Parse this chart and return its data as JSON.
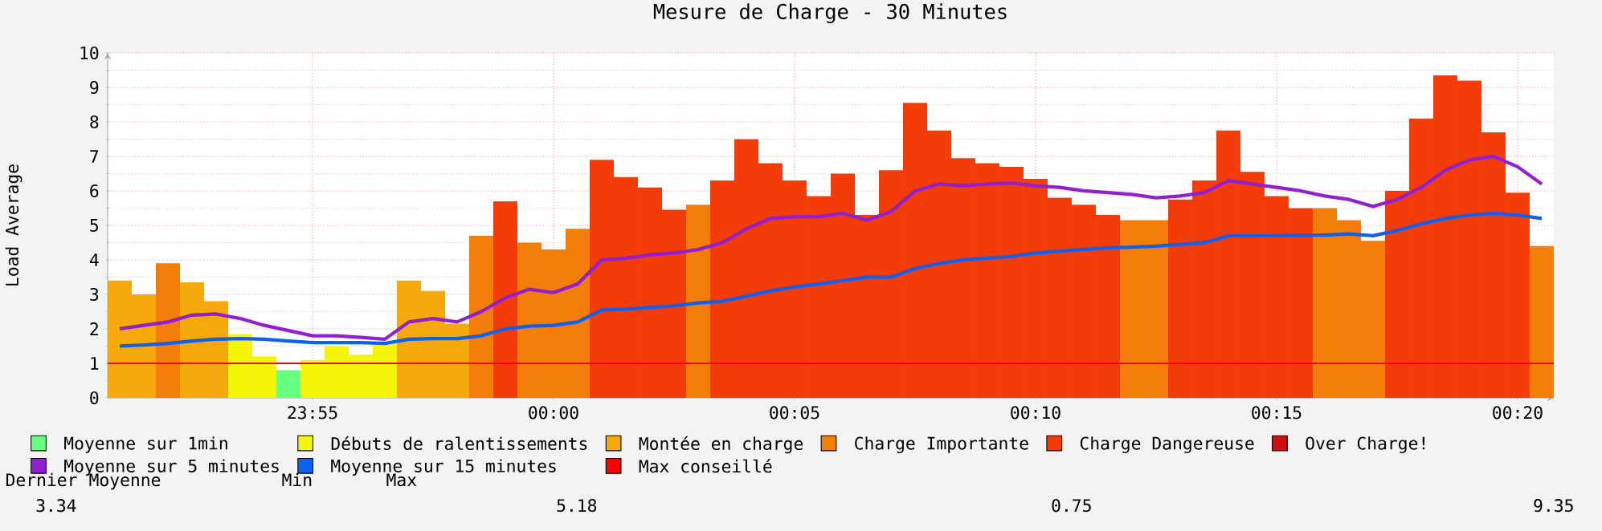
{
  "chart_data": {
    "type": "bar",
    "title": "Mesure de Charge - 30 Minutes",
    "ylabel": "Load Average",
    "x": [
      "2000-01-01T23:51:00",
      "2000-01-01T23:51:30",
      "2000-01-01T23:52:00",
      "2000-01-01T23:52:30",
      "2000-01-01T23:53:00",
      "2000-01-01T23:53:30",
      "2000-01-01T23:54:00",
      "2000-01-01T23:54:30",
      "2000-01-01T23:55:00",
      "2000-01-01T23:55:30",
      "2000-01-01T23:56:00",
      "2000-01-01T23:56:30",
      "2000-01-01T23:57:00",
      "2000-01-01T23:57:30",
      "2000-01-01T23:58:00",
      "2000-01-01T23:58:30",
      "2000-01-01T23:59:00",
      "2000-01-01T23:59:30",
      "2000-01-02T00:00:00",
      "2000-01-02T00:00:30",
      "2000-01-02T00:01:00",
      "2000-01-02T00:01:30",
      "2000-01-02T00:02:00",
      "2000-01-02T00:02:30",
      "2000-01-02T00:03:00",
      "2000-01-02T00:03:30",
      "2000-01-02T00:04:00",
      "2000-01-02T00:04:30",
      "2000-01-02T00:05:00",
      "2000-01-02T00:05:30",
      "2000-01-02T00:06:00",
      "2000-01-02T00:06:30",
      "2000-01-02T00:07:00",
      "2000-01-02T00:07:30",
      "2000-01-02T00:08:00",
      "2000-01-02T00:08:30",
      "2000-01-02T00:09:00",
      "2000-01-02T00:09:30",
      "2000-01-02T00:10:00",
      "2000-01-02T00:10:30",
      "2000-01-02T00:11:00",
      "2000-01-02T00:11:30",
      "2000-01-02T00:12:00",
      "2000-01-02T00:12:30",
      "2000-01-02T00:13:00",
      "2000-01-02T00:13:30",
      "2000-01-02T00:14:00",
      "2000-01-02T00:14:30",
      "2000-01-02T00:15:00",
      "2000-01-02T00:15:30",
      "2000-01-02T00:16:00",
      "2000-01-02T00:16:30",
      "2000-01-02T00:17:00",
      "2000-01-02T00:17:30",
      "2000-01-02T00:18:00",
      "2000-01-02T00:18:30",
      "2000-01-02T00:19:00",
      "2000-01-02T00:19:30",
      "2000-01-02T00:20:00",
      "2000-01-02T00:20:30"
    ],
    "xlim": [
      "2000-01-01T23:50:45",
      "2000-01-02T00:20:45"
    ],
    "xticks": [
      {
        "value": "2000-01-01T23:55",
        "label": "23:55"
      },
      {
        "value": "2000-01-02T00:00",
        "label": "00:00"
      },
      {
        "value": "2000-01-02T00:05",
        "label": "00:05"
      },
      {
        "value": "2000-01-02T00:10",
        "label": "00:10"
      },
      {
        "value": "2000-01-02T00:15",
        "label": "00:15"
      },
      {
        "value": "2000-01-02T00:20",
        "label": "00:20"
      }
    ],
    "ylim": [
      0,
      10
    ],
    "yticks": [
      0,
      1,
      2,
      3,
      4,
      5,
      6,
      7,
      8,
      9,
      10
    ],
    "grid": true,
    "legend": "bottom",
    "series": [
      {
        "name": "Moyenne sur 1min",
        "color": "#66ff80",
        "values": [
          null,
          null,
          null,
          null,
          null,
          null,
          null,
          0.8,
          null,
          null,
          null,
          null,
          null,
          null,
          null,
          null,
          null,
          null,
          null,
          null,
          null,
          null,
          null,
          null,
          null,
          null,
          null,
          null,
          null,
          null,
          null,
          null,
          null,
          null,
          null,
          null,
          null,
          null,
          null,
          null,
          null,
          null,
          null,
          null,
          null,
          null,
          null,
          null,
          null,
          null,
          null,
          null,
          null,
          null,
          null,
          null,
          null,
          null,
          null,
          null
        ]
      },
      {
        "name": "Débuts de ralentissements",
        "color": "#f5f50a",
        "values": [
          null,
          null,
          null,
          null,
          null,
          1.85,
          1.2,
          null,
          1.1,
          1.5,
          1.25,
          1.6,
          null,
          null,
          null,
          null,
          null,
          null,
          null,
          null,
          null,
          null,
          null,
          null,
          null,
          null,
          null,
          null,
          null,
          null,
          null,
          null,
          null,
          null,
          null,
          null,
          null,
          null,
          null,
          null,
          null,
          null,
          null,
          null,
          null,
          null,
          null,
          null,
          null,
          null,
          null,
          null,
          null,
          null,
          null,
          null,
          null,
          null,
          null,
          null
        ]
      },
      {
        "name": "Montée en charge",
        "color": "#f5a80a",
        "values": [
          3.4,
          3.0,
          null,
          3.35,
          2.8,
          null,
          null,
          null,
          null,
          null,
          null,
          null,
          3.4,
          3.1,
          2.15,
          null,
          null,
          null,
          null,
          null,
          null,
          null,
          null,
          null,
          null,
          null,
          null,
          null,
          null,
          null,
          null,
          null,
          null,
          null,
          null,
          null,
          null,
          null,
          null,
          null,
          null,
          null,
          null,
          null,
          null,
          null,
          null,
          null,
          null,
          null,
          null,
          null,
          null,
          null,
          null,
          null,
          null,
          null,
          null,
          null
        ]
      },
      {
        "name": "Charge Importante",
        "color": "#f47c08",
        "values": [
          null,
          null,
          3.9,
          null,
          null,
          null,
          null,
          null,
          null,
          null,
          null,
          null,
          null,
          null,
          null,
          4.7,
          null,
          4.5,
          4.3,
          4.9,
          null,
          null,
          null,
          null,
          5.6,
          null,
          null,
          null,
          null,
          null,
          null,
          null,
          null,
          null,
          null,
          null,
          null,
          null,
          null,
          null,
          null,
          null,
          5.15,
          5.15,
          null,
          null,
          null,
          null,
          null,
          null,
          5.5,
          5.15,
          4.55,
          null,
          null,
          null,
          null,
          null,
          null,
          4.4
        ]
      },
      {
        "name": "Charge Dangereuse",
        "color": "#f43c08",
        "values": [
          null,
          null,
          null,
          null,
          null,
          null,
          null,
          null,
          null,
          null,
          null,
          null,
          null,
          null,
          null,
          null,
          5.7,
          null,
          null,
          null,
          6.9,
          6.4,
          6.1,
          5.45,
          null,
          6.3,
          7.5,
          6.8,
          6.3,
          5.85,
          6.5,
          5.3,
          6.6,
          8.55,
          7.75,
          6.95,
          6.8,
          6.7,
          6.35,
          5.8,
          5.6,
          5.3,
          null,
          null,
          5.75,
          6.3,
          7.75,
          6.55,
          5.85,
          5.5,
          null,
          null,
          null,
          6.0,
          8.1,
          9.35,
          9.2,
          7.7,
          5.95,
          null
        ]
      },
      {
        "name": "Over Charge!",
        "color": "#d01010",
        "values": [
          null,
          null,
          null,
          null,
          null,
          null,
          null,
          null,
          null,
          null,
          null,
          null,
          null,
          null,
          null,
          null,
          null,
          null,
          null,
          null,
          null,
          null,
          null,
          null,
          null,
          null,
          null,
          null,
          null,
          null,
          null,
          null,
          null,
          null,
          null,
          null,
          null,
          null,
          null,
          null,
          null,
          null,
          null,
          null,
          null,
          null,
          null,
          null,
          null,
          null,
          null,
          null,
          null,
          null,
          null,
          null,
          null,
          null,
          null,
          null
        ]
      },
      {
        "name": "Moyenne sur 5 minutes",
        "type": "line",
        "color": "#9020d0",
        "values": [
          2.0,
          2.1,
          2.2,
          2.4,
          2.43,
          2.3,
          2.1,
          1.95,
          1.8,
          1.8,
          1.75,
          1.7,
          2.2,
          2.3,
          2.2,
          2.5,
          2.9,
          3.15,
          3.05,
          3.3,
          4.0,
          4.05,
          4.15,
          4.2,
          4.3,
          4.5,
          4.9,
          5.2,
          5.25,
          5.25,
          5.35,
          5.15,
          5.4,
          6.0,
          6.2,
          6.15,
          6.2,
          6.23,
          6.15,
          6.1,
          6.0,
          5.95,
          5.9,
          5.8,
          5.85,
          5.95,
          6.3,
          6.2,
          6.1,
          6.0,
          5.85,
          5.75,
          5.55,
          5.75,
          6.1,
          6.6,
          6.9,
          7.0,
          6.7,
          6.2
        ]
      },
      {
        "name": "Moyenne sur 15 minutes",
        "type": "line",
        "color": "#1060f0",
        "values": [
          1.5,
          1.53,
          1.58,
          1.65,
          1.7,
          1.72,
          1.7,
          1.65,
          1.6,
          1.6,
          1.6,
          1.58,
          1.7,
          1.72,
          1.72,
          1.8,
          2.0,
          2.08,
          2.1,
          2.2,
          2.55,
          2.57,
          2.62,
          2.67,
          2.75,
          2.8,
          2.95,
          3.1,
          3.22,
          3.3,
          3.4,
          3.5,
          3.5,
          3.75,
          3.9,
          4.0,
          4.05,
          4.1,
          4.2,
          4.25,
          4.3,
          4.35,
          4.37,
          4.4,
          4.45,
          4.5,
          4.7,
          4.7,
          4.7,
          4.72,
          4.72,
          4.75,
          4.7,
          4.85,
          5.05,
          5.2,
          5.3,
          5.35,
          5.3,
          5.2
        ]
      }
    ],
    "ref_lines": [
      {
        "axis": "y",
        "value": 1,
        "label": "Max conseillé",
        "color": "#ff0000"
      }
    ],
    "annotations": [
      "Dernier",
      "Moyenne",
      "Min",
      "Max",
      "3.34",
      "5.18",
      "0.75",
      "9.35"
    ]
  }
}
